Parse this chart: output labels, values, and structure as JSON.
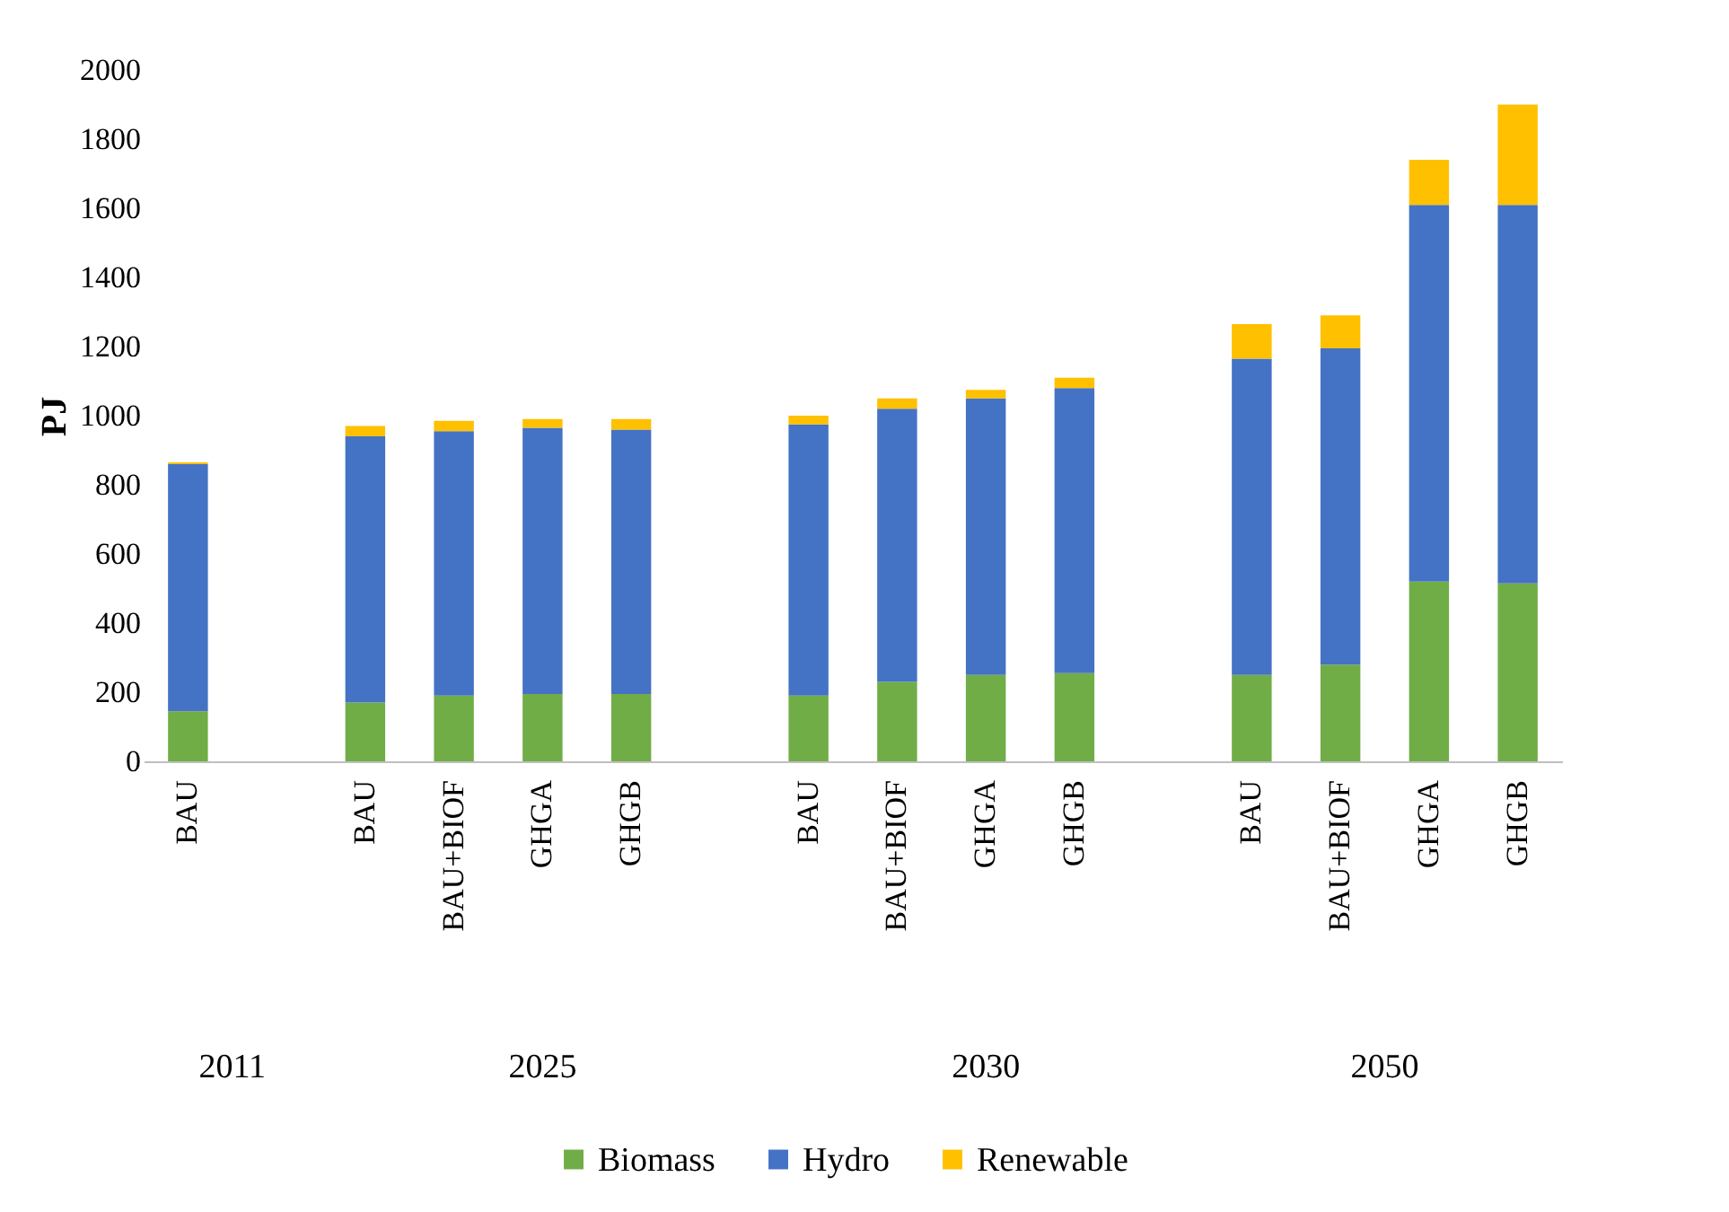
{
  "chart_data": {
    "type": "bar",
    "stacked": true,
    "ylabel": "PJ",
    "ylim": [
      0,
      2000
    ],
    "yticks": [
      0,
      200,
      400,
      600,
      800,
      1000,
      1200,
      1400,
      1600,
      1800,
      2000
    ],
    "grid": false,
    "legend": "bottom",
    "categories": [
      "BAU",
      null,
      "BAU",
      "BAU+BIOF",
      "GHGA",
      "GHGB",
      null,
      "BAU",
      "BAU+BIOF",
      "GHGA",
      "GHGB",
      null,
      "BAU",
      "BAU+BIOF",
      "GHGA",
      "GHGB"
    ],
    "annotations": [
      "2011",
      "2025",
      "2030",
      "2050"
    ],
    "series": [
      {
        "name": "Biomass",
        "color": "#70ad47",
        "values": [
          145,
          null,
          170,
          190,
          195,
          195,
          null,
          190,
          230,
          250,
          255,
          null,
          250,
          280,
          520,
          515
        ]
      },
      {
        "name": "Hydro",
        "color": "#4472c4",
        "values": [
          715,
          null,
          770,
          765,
          770,
          765,
          null,
          785,
          790,
          800,
          825,
          null,
          915,
          915,
          1090,
          1095
        ]
      },
      {
        "name": "Renewable",
        "color": "#ffc000",
        "values": [
          5,
          null,
          30,
          30,
          25,
          30,
          null,
          25,
          30,
          25,
          30,
          null,
          100,
          95,
          130,
          290
        ]
      }
    ]
  }
}
